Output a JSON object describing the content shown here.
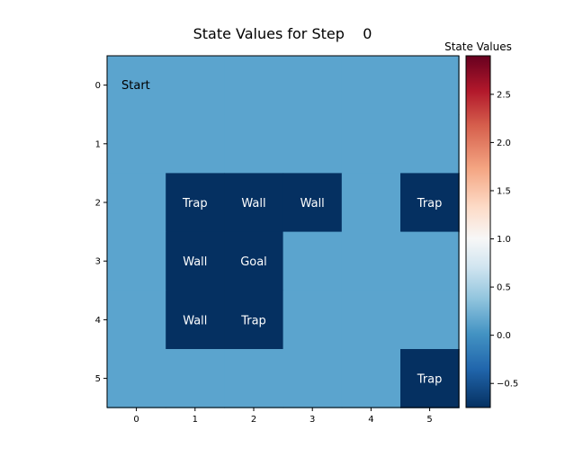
{
  "chart_data": {
    "type": "heatmap",
    "title": "State Values for Step    0",
    "x_ticks": [
      "0",
      "1",
      "2",
      "3",
      "4",
      "5"
    ],
    "y_ticks": [
      "0",
      "1",
      "2",
      "3",
      "4",
      "5"
    ],
    "cells": [
      [
        0,
        0,
        0,
        0,
        0,
        0
      ],
      [
        0,
        0,
        0,
        0,
        0,
        0
      ],
      [
        0,
        -0.75,
        -0.75,
        -0.75,
        0,
        -0.75
      ],
      [
        0,
        -0.75,
        -0.75,
        0,
        0,
        0
      ],
      [
        0,
        -0.75,
        -0.75,
        0,
        0,
        0
      ],
      [
        0,
        0,
        0,
        0,
        0,
        -0.75
      ]
    ],
    "annotations": [
      {
        "row": 0,
        "col": 0,
        "text": "Start"
      },
      {
        "row": 2,
        "col": 1,
        "text": "Trap"
      },
      {
        "row": 2,
        "col": 2,
        "text": "Wall"
      },
      {
        "row": 2,
        "col": 3,
        "text": "Wall"
      },
      {
        "row": 2,
        "col": 5,
        "text": "Trap"
      },
      {
        "row": 3,
        "col": 1,
        "text": "Wall"
      },
      {
        "row": 3,
        "col": 2,
        "text": "Goal"
      },
      {
        "row": 4,
        "col": 1,
        "text": "Wall"
      },
      {
        "row": 4,
        "col": 2,
        "text": "Trap"
      },
      {
        "row": 5,
        "col": 5,
        "text": "Trap"
      }
    ],
    "colorbar": {
      "title": "State Values",
      "colormap": "RdBu_r (diverging, centered at 1.0)",
      "vmin": -0.75,
      "vmax": 2.9,
      "center": 1.0,
      "ticks": [
        "−0.5",
        "0.0",
        "0.5",
        "1.0",
        "1.5",
        "2.0",
        "2.5"
      ],
      "tick_values": [
        -0.5,
        0,
        0.5,
        1.0,
        1.5,
        2.0,
        2.5
      ]
    }
  }
}
